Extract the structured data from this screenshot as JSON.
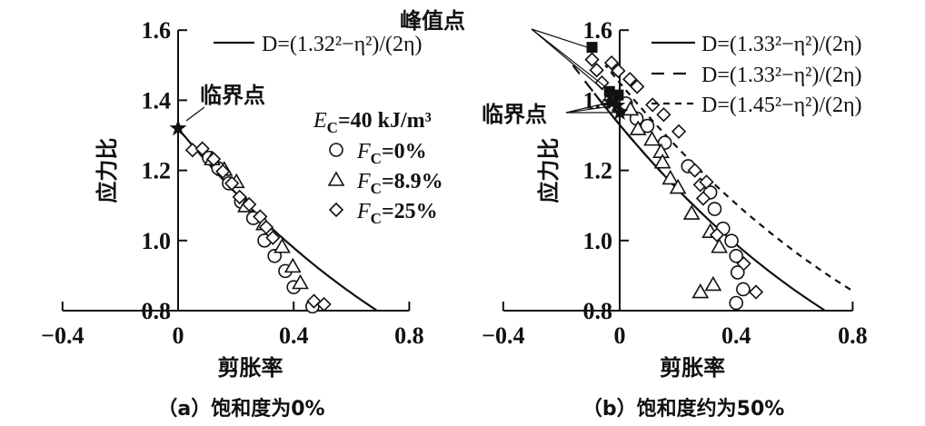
{
  "chart_data": [
    {
      "type": "scatter",
      "caption": "（a）饱和度为0%",
      "xlabel": "剪胀率",
      "ylabel": "应力比",
      "xlim": [
        -0.4,
        0.8
      ],
      "ylim": [
        0.8,
        1.6
      ],
      "xticks": [
        "−0.4",
        "0",
        "0.4",
        "0.8"
      ],
      "yticks": [
        "0.8",
        "1.0",
        "1.2",
        "1.4",
        "1.6"
      ],
      "grid": false,
      "curves": [
        {
          "name": "D=(1.32²−η²)/(2η)",
          "M": 1.32,
          "style": "solid",
          "eta_range": [
            0.8,
            1.32
          ]
        }
      ],
      "legend_header": {
        "var": "E",
        "sub": "C",
        "rest": "=40 kJ/m³"
      },
      "series": [
        {
          "name_var": "F",
          "name_sub": "C",
          "name_rest": "=0%",
          "marker": "circle",
          "points": [
            [
              0.107,
              1.236
            ],
            [
              0.139,
              1.206
            ],
            [
              0.176,
              1.163
            ],
            [
              0.218,
              1.111
            ],
            [
              0.26,
              1.064
            ],
            [
              0.299,
              1.0
            ],
            [
              0.334,
              0.956
            ],
            [
              0.371,
              0.913
            ],
            [
              0.4,
              0.867
            ],
            [
              0.465,
              0.812
            ]
          ]
        },
        {
          "name_var": "F",
          "name_sub": "C",
          "name_rest": "=8.9%",
          "marker": "triangle",
          "points": [
            [
              0.118,
              1.232
            ],
            [
              0.16,
              1.202
            ],
            [
              0.202,
              1.167
            ],
            [
              0.234,
              1.098
            ],
            [
              0.297,
              1.047
            ],
            [
              0.36,
              0.982
            ],
            [
              0.397,
              0.926
            ],
            [
              0.423,
              0.879
            ]
          ]
        },
        {
          "name_var": "F",
          "name_sub": "C",
          "name_rest": "=25%",
          "marker": "diamond",
          "points": [
            [
              0.05,
              1.258
            ],
            [
              0.084,
              1.262
            ],
            [
              0.123,
              1.232
            ],
            [
              0.155,
              1.197
            ],
            [
              0.186,
              1.163
            ],
            [
              0.213,
              1.124
            ],
            [
              0.246,
              1.103
            ],
            [
              0.284,
              1.068
            ],
            [
              0.305,
              1.038
            ],
            [
              0.328,
              1.008
            ],
            [
              0.47,
              0.827
            ],
            [
              0.505,
              0.818
            ]
          ]
        }
      ],
      "critical_points": [
        [
          0.0,
          1.32
        ]
      ],
      "annotations": {
        "critical": "临界点"
      }
    },
    {
      "type": "scatter",
      "caption": "（b）饱和度约为50%",
      "xlabel": "剪胀率",
      "ylabel": "应力比",
      "xlim": [
        -0.4,
        0.8
      ],
      "ylim": [
        0.8,
        1.6
      ],
      "xticks": [
        "−0.4",
        "0",
        "0.4",
        "0.8"
      ],
      "yticks": [
        "0.8",
        "1.0",
        "1.2",
        "1.4",
        "1.6"
      ],
      "grid": false,
      "curves": [
        {
          "name": "D=(1.33²−η²)/(2η)",
          "M": 1.33,
          "style": "solid",
          "eta_range": [
            0.8,
            1.42
          ]
        },
        {
          "name": "D=(1.33²−η²)/(2η)",
          "M": 1.33,
          "style": "long-dash",
          "eta_range": [
            1.1,
            1.5
          ]
        },
        {
          "name": "D=(1.45²−η²)/(2η)",
          "M": 1.45,
          "style": "short-dash",
          "eta_range": [
            0.86,
            1.5
          ]
        }
      ],
      "series": [
        {
          "marker": "circle",
          "points": [
            [
              0.021,
              1.391
            ],
            [
              0.058,
              1.348
            ],
            [
              0.095,
              1.327
            ],
            [
              0.155,
              1.279
            ],
            [
              0.235,
              1.212
            ],
            [
              0.311,
              1.137
            ],
            [
              0.326,
              1.09
            ],
            [
              0.355,
              1.034
            ],
            [
              0.384,
              0.999
            ],
            [
              0.4,
              0.956
            ],
            [
              0.405,
              0.909
            ],
            [
              0.424,
              0.861
            ],
            [
              0.4,
              0.822
            ]
          ]
        },
        {
          "marker": "triangle",
          "points": [
            [
              0.037,
              1.374
            ],
            [
              0.063,
              1.318
            ],
            [
              0.111,
              1.288
            ],
            [
              0.142,
              1.253
            ],
            [
              0.147,
              1.223
            ],
            [
              0.174,
              1.177
            ],
            [
              0.2,
              1.151
            ],
            [
              0.247,
              1.077
            ],
            [
              0.311,
              1.025
            ],
            [
              0.342,
              0.982
            ],
            [
              0.277,
              0.853
            ],
            [
              0.321,
              0.874
            ]
          ]
        },
        {
          "marker": "diamond",
          "points": [
            [
              -0.095,
              1.516
            ],
            [
              -0.079,
              1.486
            ],
            [
              -0.061,
              1.45
            ],
            [
              -0.028,
              1.507
            ],
            [
              -0.005,
              1.484
            ],
            [
              0.035,
              1.46
            ],
            [
              0.06,
              1.439
            ],
            [
              0.113,
              1.387
            ],
            [
              0.151,
              1.359
            ],
            [
              0.203,
              1.311
            ],
            [
              0.258,
              1.2
            ],
            [
              0.277,
              1.159
            ],
            [
              0.287,
              1.12
            ],
            [
              0.298,
              1.167
            ],
            [
              0.334,
              1.016
            ],
            [
              0.426,
              0.934
            ],
            [
              0.468,
              0.853
            ]
          ]
        }
      ],
      "peak_points": [
        [
          -0.095,
          1.551
        ],
        [
          -0.035,
          1.425
        ],
        [
          -0.005,
          1.415
        ]
      ],
      "critical_points": [
        [
          -0.01,
          1.385
        ],
        [
          0.0,
          1.365
        ],
        [
          -0.03,
          1.395
        ]
      ],
      "annotations": {
        "peak": "峰值点",
        "critical": "临界点"
      }
    }
  ]
}
